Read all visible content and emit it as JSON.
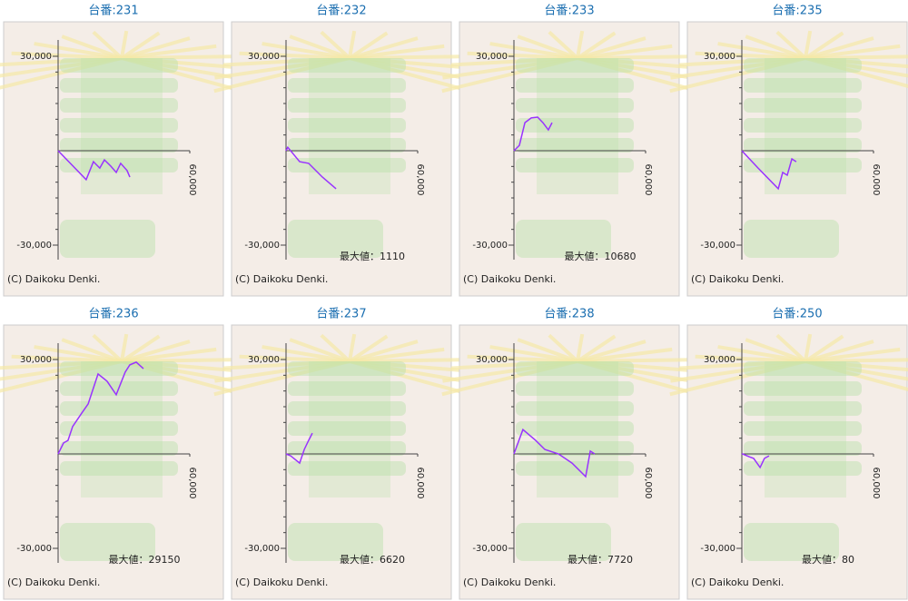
{
  "chart_data": [
    {
      "type": "line",
      "title": "台番:231",
      "color": "#9933ff",
      "xlim": [
        0,
        60000
      ],
      "ylim": [
        -30000,
        30000
      ],
      "xticks": [
        {
          "value": 60000,
          "label": "60,000"
        }
      ],
      "yticks": [
        {
          "value": 30000,
          "label": "30,000"
        },
        {
          "value": -30000,
          "label": "-30,000"
        }
      ],
      "y_minor_ticks": [
        -25000,
        -20000,
        -15000,
        -10000,
        -5000,
        5000,
        10000,
        15000,
        20000,
        25000
      ],
      "x": [
        0,
        12800,
        16100,
        19000,
        21100,
        24000,
        26500,
        28500,
        31400,
        32700
      ],
      "values": [
        0,
        -9200,
        -3500,
        -5500,
        -2900,
        -4900,
        -6900,
        -4000,
        -6300,
        -8400
      ],
      "copyright": "(C) Daikoku Denki."
    },
    {
      "type": "line",
      "title": "台番:232",
      "color": "#9933ff",
      "xlim": [
        0,
        60000
      ],
      "ylim": [
        -30000,
        30000
      ],
      "xticks": [
        {
          "value": 60000,
          "label": "60,000"
        }
      ],
      "yticks": [
        {
          "value": 30000,
          "label": "30,000"
        },
        {
          "value": -30000,
          "label": "-30,000"
        }
      ],
      "y_minor_ticks": [
        -25000,
        -20000,
        -15000,
        -10000,
        -5000,
        5000,
        10000,
        15000,
        20000,
        25000
      ],
      "x": [
        0,
        800,
        6200,
        10300,
        16600,
        22800
      ],
      "values": [
        0,
        1110,
        -3500,
        -4000,
        -8400,
        -12100
      ],
      "max_label": "最大値：1110",
      "copyright": "(C) Daikoku Denki."
    },
    {
      "type": "line",
      "title": "台番:233",
      "color": "#9933ff",
      "xlim": [
        0,
        60000
      ],
      "ylim": [
        -30000,
        30000
      ],
      "xticks": [
        {
          "value": 60000,
          "label": "60,000"
        }
      ],
      "yticks": [
        {
          "value": 30000,
          "label": "30,000"
        },
        {
          "value": -30000,
          "label": "-30,000"
        }
      ],
      "y_minor_ticks": [
        -25000,
        -20000,
        -15000,
        -10000,
        -5000,
        5000,
        10000,
        15000,
        20000,
        25000
      ],
      "x": [
        0,
        2500,
        5000,
        7900,
        10800,
        13200,
        15700,
        17400
      ],
      "values": [
        0,
        1700,
        8900,
        10400,
        10680,
        8900,
        6600,
        8900
      ],
      "max_label": "最大値：10680",
      "copyright": "(C) Daikoku Denki."
    },
    {
      "type": "line",
      "title": "台番:235",
      "color": "#9933ff",
      "xlim": [
        0,
        60000
      ],
      "ylim": [
        -30000,
        30000
      ],
      "xticks": [
        {
          "value": 60000,
          "label": "60,000"
        }
      ],
      "yticks": [
        {
          "value": 30000,
          "label": "30,000"
        },
        {
          "value": -30000,
          "label": "-30,000"
        }
      ],
      "y_minor_ticks": [
        -25000,
        -20000,
        -15000,
        -10000,
        -5000,
        5000,
        10000,
        15000,
        20000,
        25000
      ],
      "x": [
        0,
        7400,
        16600,
        18600,
        20700,
        22800,
        24800
      ],
      "values": [
        0,
        -5500,
        -12100,
        -6900,
        -7800,
        -2600,
        -3500
      ],
      "copyright": "(C) Daikoku Denki."
    },
    {
      "type": "line",
      "title": "台番:236",
      "color": "#9933ff",
      "xlim": [
        0,
        60000
      ],
      "ylim": [
        -30000,
        30000
      ],
      "xticks": [
        {
          "value": 60000,
          "label": "60,000"
        }
      ],
      "yticks": [
        {
          "value": 30000,
          "label": "30,000"
        },
        {
          "value": -30000,
          "label": "-30,000"
        }
      ],
      "y_minor_ticks": [
        -25000,
        -20000,
        -15000,
        -10000,
        -5000,
        5000,
        10000,
        15000,
        20000,
        25000
      ],
      "x": [
        0,
        2500,
        4500,
        6600,
        10800,
        13700,
        18200,
        22300,
        26500,
        30600,
        32700,
        35600,
        38900
      ],
      "values": [
        0,
        3500,
        4300,
        8700,
        13000,
        15900,
        25400,
        23100,
        18800,
        26000,
        28300,
        29150,
        27100
      ],
      "max_label": "最大値：29150",
      "copyright": "(C) Daikoku Denki."
    },
    {
      "type": "line",
      "title": "台番:237",
      "color": "#9933ff",
      "xlim": [
        0,
        60000
      ],
      "ylim": [
        -30000,
        30000
      ],
      "xticks": [
        {
          "value": 60000,
          "label": "60,000"
        }
      ],
      "yticks": [
        {
          "value": 30000,
          "label": "30,000"
        },
        {
          "value": -30000,
          "label": "-30,000"
        }
      ],
      "y_minor_ticks": [
        -25000,
        -20000,
        -15000,
        -10000,
        -5000,
        5000,
        10000,
        15000,
        20000,
        25000
      ],
      "x": [
        0,
        2100,
        6200,
        8300,
        10300,
        12000
      ],
      "values": [
        0,
        -600,
        -2900,
        1400,
        4300,
        6620
      ],
      "max_label": "最大値：6620",
      "copyright": "(C) Daikoku Denki."
    },
    {
      "type": "line",
      "title": "台番:238",
      "color": "#9933ff",
      "xlim": [
        0,
        60000
      ],
      "ylim": [
        -30000,
        30000
      ],
      "xticks": [
        {
          "value": 60000,
          "label": "60,000"
        }
      ],
      "yticks": [
        {
          "value": 30000,
          "label": "30,000"
        },
        {
          "value": -30000,
          "label": "-30,000"
        }
      ],
      "y_minor_ticks": [
        -25000,
        -20000,
        -15000,
        -10000,
        -5000,
        5000,
        10000,
        15000,
        20000,
        25000
      ],
      "x": [
        0,
        4100,
        9900,
        14100,
        20300,
        26500,
        32700,
        34800,
        36800
      ],
      "values": [
        0,
        7720,
        4300,
        1400,
        0,
        -2900,
        -7200,
        900,
        0
      ],
      "max_label": "最大値：7720",
      "copyright": "(C) Daikoku Denki."
    },
    {
      "type": "line",
      "title": "台番:250",
      "color": "#9933ff",
      "xlim": [
        0,
        60000
      ],
      "ylim": [
        -30000,
        30000
      ],
      "xticks": [
        {
          "value": 60000,
          "label": "60,000"
        }
      ],
      "yticks": [
        {
          "value": 30000,
          "label": "30,000"
        },
        {
          "value": -30000,
          "label": "-30,000"
        }
      ],
      "y_minor_ticks": [
        -25000,
        -20000,
        -15000,
        -10000,
        -5000,
        5000,
        10000,
        15000,
        20000,
        25000
      ],
      "x": [
        0,
        3300,
        5400,
        8300,
        10300,
        12400
      ],
      "values": [
        80,
        -900,
        -1400,
        -4300,
        -1400,
        -600
      ],
      "max_label": "最大値：80",
      "copyright": "(C) Daikoku Denki."
    }
  ]
}
